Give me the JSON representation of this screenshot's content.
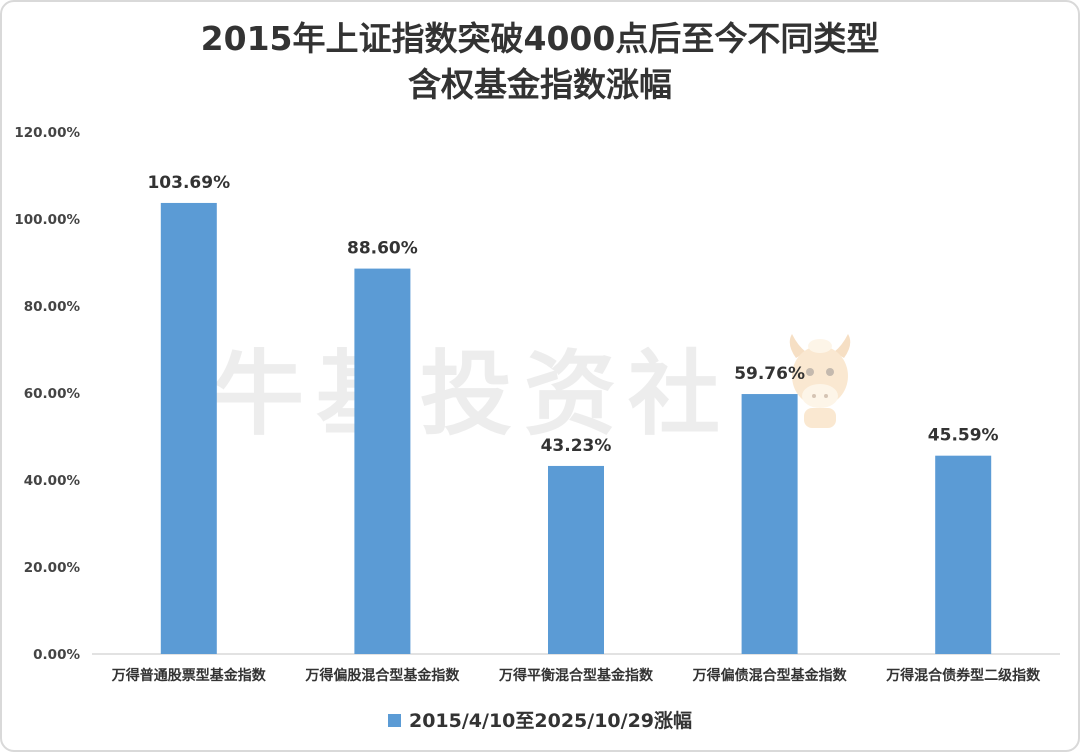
{
  "title": {
    "line1": "2015年上证指数突破4000点后至今不同类型",
    "line2": "含权基金指数涨幅"
  },
  "watermark": {
    "text": "牛基投资社",
    "mascot_icon": "bull-mascot-icon"
  },
  "chart_data": {
    "type": "bar",
    "categories": [
      "万得普通股票型基金指数",
      "万得偏股混合型基金指数",
      "万得平衡混合型基金指数",
      "万得偏债混合型基金指数",
      "万得混合债券型二级指数"
    ],
    "series": [
      {
        "name": "2015/4/10至2025/10/29涨幅",
        "values": [
          103.69,
          88.6,
          43.23,
          59.76,
          45.59
        ],
        "labels": [
          "103.69%",
          "88.60%",
          "43.23%",
          "59.76%",
          "45.59%"
        ],
        "color": "#5b9bd5"
      }
    ],
    "ylim": [
      0,
      120
    ],
    "yticks": [
      "0.00%",
      "20.00%",
      "40.00%",
      "60.00%",
      "80.00%",
      "100.00%",
      "120.00%"
    ],
    "ytick_values": [
      0,
      20,
      40,
      60,
      80,
      100,
      120
    ],
    "grid": false,
    "legend_position": "bottom",
    "xlabel": "",
    "ylabel": ""
  }
}
